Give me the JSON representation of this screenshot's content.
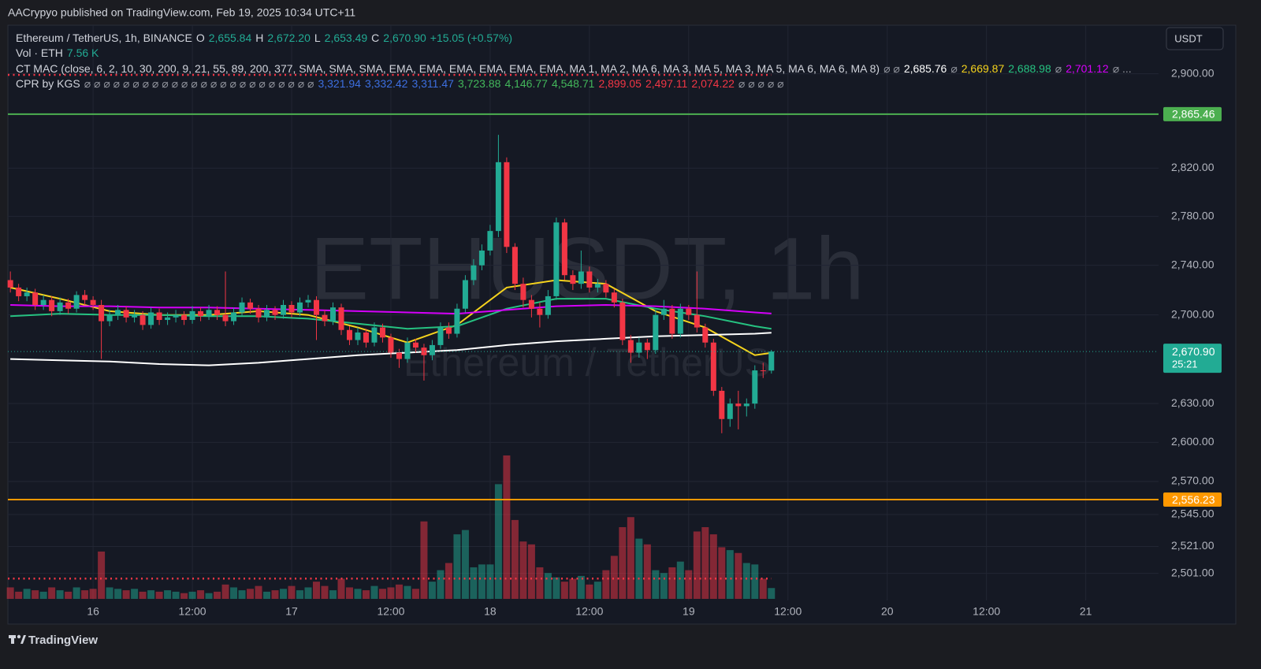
{
  "chart_data": {
    "type": "candlestick",
    "header": "AACrypyo published on TradingView.com, Feb 19, 2025 10:34 UTC+11",
    "footer": "TradingView",
    "watermark": "ETHUSDT, 1h",
    "watermark_sub": "Ethereum / TetherUS",
    "currency_button": "USDT",
    "log_scale": true,
    "grid": true,
    "up_color": "#22ab94",
    "down_color": "#f23645",
    "xlim": [
      -0.3,
      138.8
    ],
    "xticks": [
      {
        "value": 10,
        "label": "16"
      },
      {
        "value": 22,
        "label": "12:00"
      },
      {
        "value": 34,
        "label": "17"
      },
      {
        "value": 46,
        "label": "12:00"
      },
      {
        "value": 58,
        "label": "18"
      },
      {
        "value": 70,
        "label": "12:00"
      },
      {
        "value": 82,
        "label": "19"
      },
      {
        "value": 94,
        "label": "12:00"
      },
      {
        "value": 106,
        "label": "20"
      },
      {
        "value": 118,
        "label": "12:00"
      },
      {
        "value": 130,
        "label": "21"
      }
    ],
    "ylim": [
      2481,
      2942
    ],
    "yticks": [
      {
        "value": 2900,
        "label": "2,900.00"
      },
      {
        "value": 2820,
        "label": "2,820.00"
      },
      {
        "value": 2780,
        "label": "2,780.00"
      },
      {
        "value": 2740,
        "label": "2,740.00"
      },
      {
        "value": 2700,
        "label": "2,700.00"
      },
      {
        "value": 2630,
        "label": "2,630.00"
      },
      {
        "value": 2600,
        "label": "2,600.00"
      },
      {
        "value": 2570,
        "label": "2,570.00"
      },
      {
        "value": 2545,
        "label": "2,545.00"
      },
      {
        "value": 2521,
        "label": "2,521.00"
      },
      {
        "value": 2501,
        "label": "2,501.00"
      }
    ],
    "candles": {
      "x": [
        0,
        1,
        2,
        3,
        4,
        5,
        6,
        7,
        8,
        9,
        10,
        11,
        12,
        13,
        14,
        15,
        16,
        17,
        18,
        19,
        20,
        21,
        22,
        23,
        24,
        25,
        26,
        27,
        28,
        29,
        30,
        31,
        32,
        33,
        34,
        35,
        36,
        37,
        38,
        39,
        40,
        41,
        42,
        43,
        44,
        45,
        46,
        47,
        48,
        49,
        50,
        51,
        52,
        53,
        54,
        55,
        56,
        57,
        58,
        59,
        60,
        61,
        62,
        63,
        64,
        65,
        66,
        67,
        68,
        69,
        70,
        71,
        72,
        73,
        74,
        75,
        76,
        77,
        78,
        79,
        80,
        81,
        82,
        83,
        84,
        85,
        86,
        87,
        88,
        89,
        90,
        91,
        92
      ],
      "open": [
        2728,
        2722,
        2715,
        2718,
        2708,
        2712,
        2703,
        2710,
        2705,
        2716,
        2712,
        2708,
        2695,
        2700,
        2704,
        2698,
        2700,
        2692,
        2702,
        2696,
        2698,
        2700,
        2696,
        2703,
        2699,
        2704,
        2700,
        2695,
        2702,
        2710,
        2705,
        2698,
        2704,
        2700,
        2708,
        2702,
        2710,
        2712,
        2700,
        2695,
        2706,
        2688,
        2680,
        2686,
        2678,
        2690,
        2682,
        2670,
        2665,
        2678,
        2674,
        2668,
        2676,
        2690,
        2685,
        2705,
        2728,
        2740,
        2752,
        2768,
        2825,
        2755,
        2725,
        2712,
        2705,
        2700,
        2715,
        2775,
        2732,
        2725,
        2735,
        2722,
        2725,
        2718,
        2710,
        2680,
        2670,
        2678,
        2672,
        2700,
        2705,
        2685,
        2705,
        2700,
        2690,
        2678,
        2640,
        2618,
        2630,
        2628,
        2630,
        2656,
        2655.84
      ],
      "high": [
        2735,
        2725,
        2722,
        2721,
        2716,
        2715,
        2714,
        2713,
        2719,
        2720,
        2715,
        2712,
        2704,
        2708,
        2707,
        2704,
        2703,
        2706,
        2705,
        2702,
        2704,
        2703,
        2707,
        2706,
        2708,
        2707,
        2735,
        2706,
        2714,
        2713,
        2708,
        2708,
        2707,
        2712,
        2711,
        2714,
        2716,
        2715,
        2704,
        2710,
        2709,
        2691,
        2690,
        2689,
        2694,
        2693,
        2685,
        2673,
        2682,
        2681,
        2677,
        2680,
        2694,
        2694,
        2709,
        2732,
        2745,
        2757,
        2773,
        2848,
        2829,
        2758,
        2730,
        2716,
        2710,
        2720,
        2779,
        2778,
        2736,
        2752,
        2739,
        2729,
        2728,
        2721,
        2713,
        2684,
        2682,
        2681,
        2704,
        2712,
        2708,
        2709,
        2708,
        2735,
        2693,
        2681,
        2643,
        2634,
        2640,
        2634,
        2660,
        2662,
        2672.2
      ],
      "low": [
        2718,
        2711,
        2711,
        2704,
        2704,
        2699,
        2700,
        2701,
        2702,
        2708,
        2704,
        2665,
        2691,
        2696,
        2694,
        2694,
        2688,
        2689,
        2692,
        2692,
        2694,
        2692,
        2693,
        2695,
        2696,
        2696,
        2691,
        2692,
        2699,
        2701,
        2694,
        2695,
        2696,
        2697,
        2698,
        2699,
        2706,
        2680,
        2691,
        2692,
        2684,
        2676,
        2676,
        2674,
        2675,
        2678,
        2666,
        2658,
        2662,
        2670,
        2648,
        2664,
        2673,
        2681,
        2682,
        2702,
        2724,
        2736,
        2748,
        2763,
        2750,
        2720,
        2706,
        2698,
        2690,
        2697,
        2712,
        2728,
        2720,
        2721,
        2718,
        2718,
        2714,
        2706,
        2676,
        2662,
        2666,
        2665,
        2669,
        2696,
        2681,
        2682,
        2696,
        2686,
        2674,
        2636,
        2607,
        2612,
        2610,
        2620,
        2626,
        2650,
        2653.49
      ],
      "close": [
        2722,
        2715,
        2718,
        2708,
        2712,
        2703,
        2710,
        2705,
        2716,
        2712,
        2708,
        2695,
        2700,
        2704,
        2698,
        2700,
        2692,
        2702,
        2696,
        2698,
        2700,
        2696,
        2703,
        2699,
        2704,
        2700,
        2695,
        2702,
        2710,
        2705,
        2698,
        2704,
        2700,
        2708,
        2702,
        2710,
        2712,
        2700,
        2695,
        2706,
        2688,
        2680,
        2686,
        2678,
        2690,
        2682,
        2670,
        2665,
        2678,
        2674,
        2668,
        2676,
        2690,
        2685,
        2705,
        2728,
        2740,
        2752,
        2768,
        2825,
        2755,
        2725,
        2712,
        2705,
        2700,
        2715,
        2775,
        2732,
        2725,
        2735,
        2722,
        2725,
        2718,
        2710,
        2680,
        2670,
        2678,
        2672,
        2700,
        2705,
        2685,
        2705,
        2700,
        2690,
        2678,
        2640,
        2618,
        2630,
        2628,
        2630,
        2656,
        2655.84,
        2670.9
      ]
    },
    "volume": {
      "vlim": [
        0,
        100
      ],
      "values": [
        8,
        5,
        7,
        6,
        5,
        8,
        6,
        5,
        8,
        6,
        7,
        33,
        8,
        7,
        6,
        7,
        5,
        6,
        5,
        6,
        5,
        4,
        5,
        6,
        4,
        5,
        10,
        8,
        6,
        7,
        9,
        5,
        6,
        7,
        9,
        6,
        8,
        12,
        9,
        6,
        14,
        8,
        7,
        6,
        9,
        7,
        8,
        10,
        9,
        7,
        54,
        12,
        20,
        25,
        45,
        48,
        22,
        24,
        24,
        80,
        100,
        55,
        40,
        38,
        22,
        18,
        15,
        12,
        14,
        16,
        10,
        12,
        20,
        30,
        50,
        57,
        42,
        38,
        20,
        18,
        22,
        26,
        20,
        47,
        50,
        45,
        36,
        34,
        32,
        25,
        24,
        14,
        7.56
      ]
    },
    "lines": [
      {
        "color": "#f5d31d",
        "x": [
          0,
          6,
          12,
          18,
          24,
          30,
          36,
          42,
          48,
          54,
          60,
          66,
          72,
          78,
          84,
          90,
          92
        ],
        "values": [
          2722,
          2713,
          2703,
          2700,
          2700,
          2703,
          2700,
          2690,
          2678,
          2692,
          2722,
          2728,
          2725,
          2703,
          2690,
          2668,
          2669.87
        ]
      },
      {
        "color": "#26c281",
        "x": [
          0,
          6,
          12,
          18,
          24,
          30,
          36,
          42,
          48,
          54,
          60,
          66,
          72,
          78,
          84,
          90,
          92
        ],
        "values": [
          2699,
          2701,
          2700,
          2700,
          2699,
          2699,
          2697,
          2693,
          2689,
          2691,
          2705,
          2713,
          2713,
          2705,
          2699,
          2691,
          2688.98
        ]
      },
      {
        "color": "#d500f9",
        "x": [
          0,
          6,
          12,
          18,
          24,
          30,
          36,
          42,
          48,
          54,
          60,
          66,
          72,
          78,
          84,
          90,
          92
        ],
        "values": [
          2708,
          2707,
          2707,
          2706,
          2706,
          2705,
          2704,
          2703,
          2702,
          2701,
          2704,
          2707,
          2708,
          2707,
          2705,
          2702,
          2701.12
        ]
      },
      {
        "color": "#ffffff",
        "x": [
          0,
          6,
          12,
          18,
          24,
          30,
          36,
          42,
          48,
          54,
          60,
          66,
          72,
          78,
          84,
          90,
          92
        ],
        "values": [
          2665,
          2664,
          2663,
          2661,
          2660,
          2662,
          2665,
          2668,
          2670,
          2672,
          2676,
          2679,
          2681,
          2683,
          2684,
          2685,
          2685.76
        ]
      }
    ],
    "cpr_levels": [
      {
        "value": 2899.05,
        "color": "#f23645"
      },
      {
        "value": 2497.11,
        "color": "#f23645"
      }
    ],
    "levels": [
      {
        "value": 2865.46,
        "label": "2,865.46",
        "color": "#4caf50"
      },
      {
        "value": 2556.23,
        "label": "2,556.23",
        "color": "#ff9800"
      }
    ],
    "last_price": {
      "value": 2670.9,
      "label": "2,670.90",
      "countdown": "25:21",
      "color": "#22ab94"
    },
    "legend_lines": [
      [
        {
          "text": "Ethereum / TetherUS, 1h, BINANCE",
          "color": "#d1d4dc"
        },
        {
          "text": "O",
          "color": "#d1d4dc"
        },
        {
          "text": "2,655.84",
          "color": "#22ab94"
        },
        {
          "text": "H",
          "color": "#d1d4dc"
        },
        {
          "text": "2,672.20",
          "color": "#22ab94"
        },
        {
          "text": "L",
          "color": "#d1d4dc"
        },
        {
          "text": "2,653.49",
          "color": "#22ab94"
        },
        {
          "text": "C",
          "color": "#d1d4dc"
        },
        {
          "text": "2,670.90",
          "color": "#22ab94"
        },
        {
          "text": "+15.05 (+0.57%)",
          "color": "#22ab94"
        }
      ],
      [
        {
          "text": "Vol · ETH",
          "color": "#d1d4dc"
        },
        {
          "text": "7.56 K",
          "color": "#22ab94"
        }
      ],
      [
        {
          "text": "CT MAC (close, 6, 2, 10, 30, 200, 9, 21, 55, 89, 200, 377, SMA, SMA, SMA, EMA, EMA, EMA, EMA, EMA, EMA, MA 1, MA 2, MA 6, MA 3, MA 5, MA 3, MA 5, MA 6, MA 6, MA 8)",
          "color": "#d1d4dc"
        },
        {
          "text": "⌀ ⌀",
          "color": "#9598a1"
        },
        {
          "text": "2,685.76",
          "color": "#ffffff"
        },
        {
          "text": "⌀",
          "color": "#9598a1"
        },
        {
          "text": "2,669.87",
          "color": "#f5d31d"
        },
        {
          "text": "2,688.98",
          "color": "#26c281"
        },
        {
          "text": "⌀",
          "color": "#9598a1"
        },
        {
          "text": "2,701.12",
          "color": "#d500f9"
        },
        {
          "text": "⌀ ...",
          "color": "#9598a1"
        }
      ],
      [
        {
          "text": "CPR by KGS",
          "color": "#d1d4dc"
        },
        {
          "text": "⌀ ⌀ ⌀ ⌀ ⌀ ⌀ ⌀ ⌀ ⌀ ⌀ ⌀ ⌀ ⌀ ⌀ ⌀ ⌀ ⌀ ⌀ ⌀ ⌀ ⌀ ⌀ ⌀ ⌀",
          "color": "#9598a1"
        },
        {
          "text": "3,321.94",
          "color": "#3d6fe0"
        },
        {
          "text": "3,332.42",
          "color": "#3d6fe0"
        },
        {
          "text": "3,311.47",
          "color": "#3d6fe0"
        },
        {
          "text": "3,723.88",
          "color": "#43b75b"
        },
        {
          "text": "4,146.77",
          "color": "#43b75b"
        },
        {
          "text": "4,548.71",
          "color": "#43b75b"
        },
        {
          "text": "2,899.05",
          "color": "#f23645"
        },
        {
          "text": "2,497.11",
          "color": "#f23645"
        },
        {
          "text": "2,074.22",
          "color": "#f23645"
        },
        {
          "text": "⌀ ⌀ ⌀ ⌀ ⌀",
          "color": "#9598a1"
        }
      ]
    ]
  }
}
